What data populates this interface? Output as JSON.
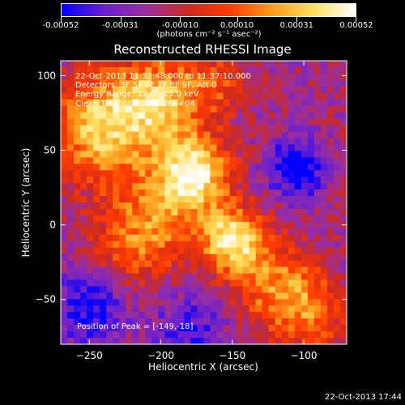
{
  "colorbar": {
    "tick_labels": [
      "-0.00052",
      "-0.00031",
      "-0.00010",
      "0.00010",
      "0.00031",
      "0.00052"
    ],
    "tick_values": [
      -0.00052,
      -0.00031,
      -0.0001,
      0.0001,
      0.00031,
      0.00052
    ],
    "units": "(photons cm⁻² s⁻¹ asec⁻²)",
    "colors": [
      "#0000ff",
      "#6a1fd0",
      "#9a2fa0",
      "#cc2a20",
      "#ff3b00",
      "#ff9a1a",
      "#ffe060",
      "#ffffff"
    ]
  },
  "chart_data": {
    "type": "heatmap",
    "title": "Reconstructed RHESSI Image",
    "xlabel": "Heliocentric X (arcsec)",
    "ylabel": "Heliocentric Y (arcsec)",
    "xlim": [
      -270,
      -70
    ],
    "ylim": [
      -80,
      110
    ],
    "x_ticks": [
      -250,
      -200,
      -150,
      -100
    ],
    "y_ticks": [
      -50,
      0,
      50,
      100
    ],
    "x_tick_labels": [
      "−250",
      "−200",
      "−150",
      "−100"
    ],
    "y_tick_labels": [
      "−50",
      "0",
      "50",
      "100"
    ],
    "peak": {
      "x": -149,
      "y": -18
    },
    "sources": [
      {
        "x": -178,
        "y": 35,
        "strength": 1.0,
        "sigma": 18
      },
      {
        "x": -150,
        "y": -10,
        "strength": 0.95,
        "sigma": 15
      },
      {
        "x": -240,
        "y": 65,
        "strength": 0.85,
        "sigma": 25
      },
      {
        "x": -200,
        "y": 85,
        "strength": 0.7,
        "sigma": 20
      },
      {
        "x": -205,
        "y": 0,
        "strength": 0.55,
        "sigma": 22
      },
      {
        "x": -120,
        "y": -40,
        "strength": 0.55,
        "sigma": 20
      },
      {
        "x": -95,
        "y": -60,
        "strength": 0.45,
        "sigma": 18
      },
      {
        "x": -160,
        "y": 95,
        "strength": 0.35,
        "sigma": 15
      },
      {
        "x": -230,
        "y": -20,
        "strength": 0.25,
        "sigma": 18
      }
    ],
    "sinks": [
      {
        "x": -105,
        "y": 38,
        "strength": 1.0,
        "sigma": 14
      },
      {
        "x": -250,
        "y": -55,
        "strength": 0.8,
        "sigma": 18
      },
      {
        "x": -180,
        "y": -70,
        "strength": 0.6,
        "sigma": 18
      }
    ]
  },
  "annotations": {
    "time_range": "22-Oct-2013 11:32:48.000 to 11:37:10.000",
    "detectors": "Detectors: 3F 5F 6F 7F 8F 9F, Att 0",
    "energy": "Energy Range: 12.0 - 25.0 keV",
    "clean": "Clean    Total counts: 1.26E+04",
    "peak_text": "Position of Peak = [-149,-18]"
  },
  "footer": "22-Oct-2013 17:44"
}
